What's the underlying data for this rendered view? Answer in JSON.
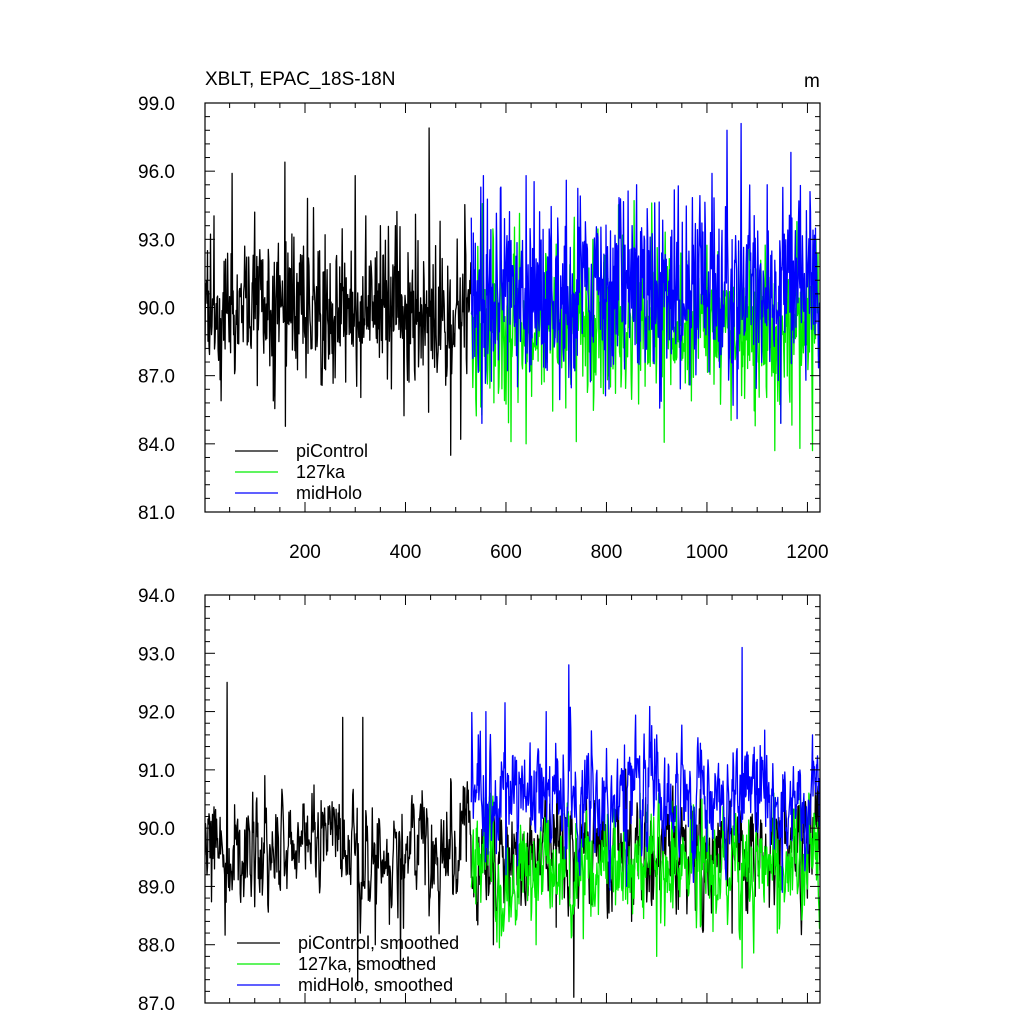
{
  "chart_data": [
    {
      "type": "line",
      "title": "XBLT, EPAC_18S-18N",
      "units": "m",
      "xlabel": "",
      "ylabel": "",
      "xlim": [
        1,
        1225
      ],
      "ylim": [
        81.0,
        99.0
      ],
      "xticks": [
        "200",
        "400",
        "600",
        "800",
        "1000",
        "1200"
      ],
      "yticks": [
        "81.0",
        "84.0",
        "87.0",
        "90.0",
        "93.0",
        "96.0",
        "99.0"
      ],
      "grid": false,
      "legend_position": "bottom-left",
      "series": [
        {
          "name": "piControl",
          "color": "#000000",
          "x_start": 1,
          "x_end": 530,
          "mean": 89.8,
          "amplitude": 1.6,
          "min": 83.5,
          "max": 97.9,
          "notable_points": [
            [
              33,
              85.9
            ],
            [
              55,
              95.9
            ],
            [
              100,
              94.2
            ],
            [
              160,
              96.4
            ],
            [
              205,
              94.8
            ],
            [
              240,
              93.2
            ],
            [
              300,
              95.8
            ],
            [
              350,
              93.6
            ],
            [
              420,
              94.1
            ],
            [
              447,
              97.9
            ],
            [
              490,
              83.5
            ],
            [
              510,
              84.2
            ]
          ]
        },
        {
          "name": "127ka",
          "color": "#00ee00",
          "x_start": 531,
          "x_end": 1225,
          "mean": 89.2,
          "amplitude": 1.8,
          "min": 83.7,
          "max": 94.8,
          "notable_points": [
            [
              610,
              84.1
            ],
            [
              640,
              84.0
            ],
            [
              740,
              84.1
            ],
            [
              855,
              94.7
            ],
            [
              890,
              94.6
            ],
            [
              1135,
              83.7
            ],
            [
              1185,
              83.8
            ]
          ]
        },
        {
          "name": "midHolo",
          "color": "#0000ff",
          "x_start": 531,
          "x_end": 1225,
          "mean": 90.8,
          "amplitude": 2.0,
          "min": 84.9,
          "max": 98.1,
          "notable_points": [
            [
              555,
              95.8
            ],
            [
              590,
              95.3
            ],
            [
              640,
              95.8
            ],
            [
              720,
              95.6
            ],
            [
              860,
              95.4
            ],
            [
              1010,
              95.9
            ],
            [
              1040,
              97.8
            ],
            [
              1068,
              98.1
            ],
            [
              1120,
              95.4
            ],
            [
              1205,
              95.1
            ]
          ]
        }
      ]
    },
    {
      "type": "line",
      "title": "",
      "xlabel": "",
      "ylabel": "",
      "xlim": [
        1,
        1225
      ],
      "ylim": [
        87.0,
        94.0
      ],
      "yticks": [
        "87.0",
        "88.0",
        "89.0",
        "90.0",
        "91.0",
        "92.0",
        "93.0",
        "94.0"
      ],
      "grid": false,
      "legend_position": "bottom-left",
      "series": [
        {
          "name": "piControl, smoothed",
          "color": "#000000",
          "x_start": 1,
          "x_end": 1225,
          "mean": 89.6,
          "amplitude": 0.55,
          "min": 87.1,
          "max": 92.5,
          "notable_points": [
            [
              5,
              89.2
            ],
            [
              20,
              89.3
            ],
            [
              45,
              92.5
            ],
            [
              60,
              90.4
            ],
            [
              120,
              90.9
            ],
            [
              150,
              89.0
            ],
            [
              275,
              91.9
            ],
            [
              305,
              87.3
            ],
            [
              310,
              88.2
            ],
            [
              315,
              91.9
            ],
            [
              335,
              89.6
            ],
            [
              340,
              88.0
            ],
            [
              390,
              87.6
            ],
            [
              470,
              89.6
            ],
            [
              575,
              88.0
            ],
            [
              700,
              88.3
            ],
            [
              735,
              87.1
            ],
            [
              850,
              88.4
            ],
            [
              1050,
              88.2
            ],
            [
              1200,
              88.8
            ]
          ]
        },
        {
          "name": "127ka, smoothed",
          "color": "#00ee00",
          "x_start": 531,
          "x_end": 1225,
          "mean": 89.3,
          "amplitude": 0.6,
          "min": 87.6,
          "max": 90.6,
          "notable_points": [
            [
              540,
              88.7
            ],
            [
              600,
              89.9
            ],
            [
              660,
              88.0
            ],
            [
              760,
              90.3
            ],
            [
              900,
              87.8
            ],
            [
              990,
              90.5
            ],
            [
              1070,
              87.6
            ],
            [
              1140,
              88.2
            ],
            [
              1220,
              90.1
            ]
          ]
        },
        {
          "name": "midHolo, smoothed",
          "color": "#0000ff",
          "x_start": 531,
          "x_end": 1225,
          "mean": 90.5,
          "amplitude": 0.6,
          "min": 88.1,
          "max": 93.1,
          "notable_points": [
            [
              530,
              91.8
            ],
            [
              545,
              91.6
            ],
            [
              560,
              92.0
            ],
            [
              600,
              89.2
            ],
            [
              680,
              92.0
            ],
            [
              725,
              92.8
            ],
            [
              840,
              89.0
            ],
            [
              900,
              91.6
            ],
            [
              1000,
              89.6
            ],
            [
              1070,
              93.1
            ],
            [
              1150,
              88.9
            ],
            [
              1210,
              91.6
            ],
            [
              1225,
              90.8
            ]
          ]
        }
      ]
    }
  ]
}
